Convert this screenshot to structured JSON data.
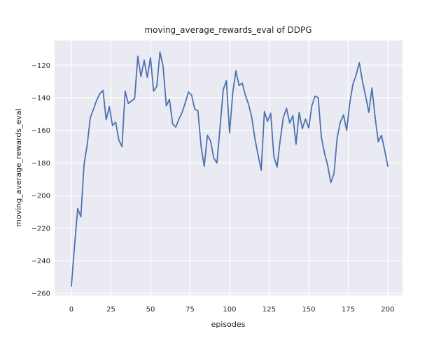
{
  "figure": {
    "background_color": "#ffffff"
  },
  "chart_data": {
    "type": "line",
    "title": "moving_average_rewards_eval of DDPG",
    "xlabel": "episodes",
    "ylabel": "moving_average_rewards_eval",
    "x_ticks": [
      0,
      25,
      50,
      75,
      100,
      125,
      150,
      175,
      200
    ],
    "y_ticks": [
      -260,
      -240,
      -220,
      -200,
      -180,
      -160,
      -140,
      -120
    ],
    "xlim": [
      -10.6,
      209.3
    ],
    "ylim": [
      -261.2,
      -104.9
    ],
    "grid": true,
    "legend_position": "none",
    "style": {
      "axes_background": "#eaeaf2",
      "grid_color": "#ffffff",
      "line_color": "#4c72b0",
      "text_color": "#262626"
    },
    "series": [
      {
        "name": "moving_average_rewards_eval",
        "x": [
          0,
          2,
          4,
          6,
          8,
          10,
          12,
          14,
          16,
          18,
          20,
          22,
          24,
          26,
          28,
          30,
          32,
          34,
          36,
          38,
          40,
          42,
          44,
          46,
          48,
          50,
          52,
          54,
          56,
          58,
          60,
          62,
          64,
          66,
          68,
          70,
          72,
          74,
          76,
          78,
          80,
          82,
          84,
          86,
          88,
          90,
          92,
          94,
          96,
          98,
          100,
          102,
          104,
          106,
          108,
          110,
          112,
          114,
          116,
          118,
          120,
          122,
          124,
          126,
          128,
          130,
          132,
          134,
          136,
          138,
          140,
          142,
          144,
          146,
          148,
          150,
          152,
          154,
          156,
          158,
          160,
          162,
          164,
          166,
          168,
          170,
          172,
          174,
          176,
          178,
          180,
          182,
          184,
          186,
          188,
          190,
          192,
          194,
          196,
          198,
          200
        ],
        "y": [
          -255.5,
          -231,
          -208,
          -213,
          -181,
          -169,
          -152,
          -147,
          -141.5,
          -137.5,
          -135.5,
          -153.5,
          -145.5,
          -157,
          -155,
          -166,
          -170,
          -136,
          -143.5,
          -142,
          -140.5,
          -114.5,
          -127,
          -117,
          -127.5,
          -115.5,
          -136,
          -133,
          -112,
          -121,
          -145,
          -141,
          -156,
          -158,
          -153,
          -149,
          -143,
          -136.5,
          -138.5,
          -147,
          -148,
          -170,
          -182,
          -163,
          -166.5,
          -177,
          -180,
          -158,
          -135,
          -129.5,
          -161.5,
          -137,
          -123.5,
          -132.5,
          -131,
          -138.5,
          -144,
          -152,
          -165,
          -175,
          -184.5,
          -148.5,
          -154.5,
          -149.5,
          -176,
          -182.5,
          -166,
          -152,
          -146.5,
          -155.5,
          -151,
          -168.5,
          -149,
          -159,
          -153,
          -158.5,
          -145,
          -139,
          -140,
          -164,
          -174,
          -181.5,
          -192,
          -186.5,
          -164.5,
          -155,
          -150.5,
          -160,
          -143,
          -131.5,
          -126,
          -118.5,
          -130,
          -139,
          -149,
          -134,
          -152,
          -167,
          -163,
          -172,
          -182
        ]
      }
    ]
  }
}
